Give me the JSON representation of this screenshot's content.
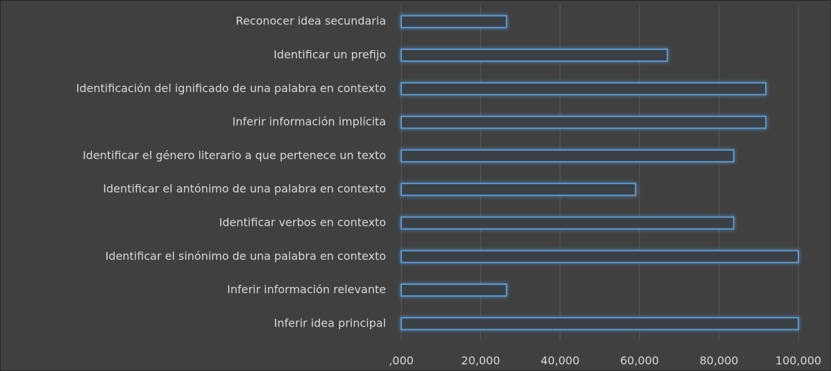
{
  "chart_data": {
    "type": "bar",
    "orientation": "horizontal",
    "categories": [
      "Reconocer idea secundaria",
      "Identificar un prefijo",
      "Identificación del ignificado de una palabra en contexto",
      "Inferir información implícita",
      "Identificar el género literario a que pertenece un texto",
      "Identificar el antónimo de una palabra en contexto",
      "Identificar verbos en contexto",
      "Identificar el sinónimo de una palabra en contexto",
      "Inferir información relevante",
      "Inferir idea principal"
    ],
    "values": [
      26.5,
      67,
      91.8,
      91.8,
      83.7,
      59,
      83.7,
      100,
      26.5,
      100
    ],
    "color": "#5b9bd5",
    "xlim": [
      0,
      100
    ],
    "xticks": [
      {
        "value": 0,
        "label": ",000"
      },
      {
        "value": 20,
        "label": "20,000"
      },
      {
        "value": 40,
        "label": "40,000"
      },
      {
        "value": 60,
        "label": "60,000"
      },
      {
        "value": 80,
        "label": "80,000"
      },
      {
        "value": 100,
        "label": "100,000"
      }
    ],
    "grid": true
  }
}
